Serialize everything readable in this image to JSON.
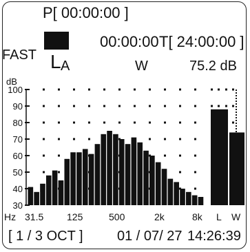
{
  "header": {
    "p_label": "P[ 00:00:00 ]",
    "elapsed": "00:00:00",
    "t_label": "T[ 24:00:00 ]",
    "mode": "FAST",
    "weighting_symbol": "L",
    "weighting_sub": "A",
    "freq_weight": "W",
    "level": "75.2 dB"
  },
  "footer": {
    "band": "[ 1 / 3   OCT ]",
    "date": "01 / 07/ 27",
    "time": "14:26:39"
  },
  "chart_data": {
    "type": "bar",
    "unit": "dB",
    "xlabel_unit": "Hz",
    "x_tick_labels": [
      "31.5",
      "125",
      "500",
      "2k",
      "8k"
    ],
    "y_ticks": [
      30,
      40,
      50,
      60,
      70,
      80,
      90,
      100
    ],
    "ylim": [
      30,
      100
    ],
    "grid": "dotted",
    "values": [
      41,
      38,
      43,
      48,
      51,
      45,
      58,
      62,
      62,
      64,
      61,
      67,
      73,
      75,
      73,
      70,
      67,
      71,
      68,
      63,
      60,
      56,
      52,
      46,
      44,
      40,
      38,
      36,
      35
    ],
    "overall_bars": [
      {
        "label": "L",
        "value": 88
      },
      {
        "label": "W",
        "value": 74
      }
    ]
  }
}
